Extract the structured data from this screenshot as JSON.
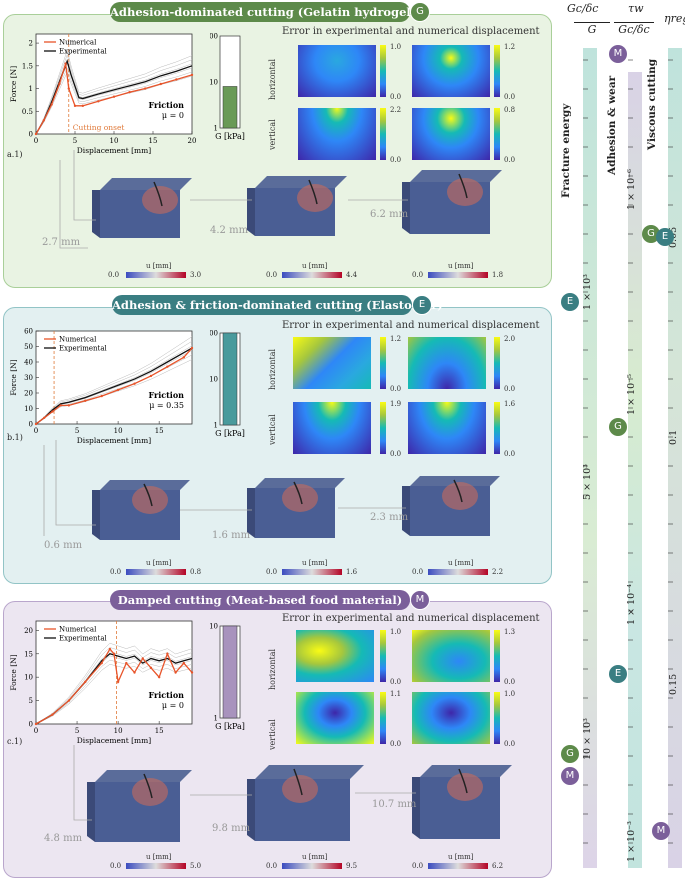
{
  "colors": {
    "green": "#5d8a4a",
    "teal": "#3a7e82",
    "purple": "#7b5f9a",
    "numerical": "#e8542a",
    "experimental": "#111111",
    "onset": "#e07a3a",
    "grey": "#999999"
  },
  "panels": [
    {
      "id": "a",
      "title": "Adhesion-dominated cutting (Gelatin hydrogel)",
      "badge": "G",
      "label": "a.1)",
      "plot": {
        "ylabel": "Force [N]",
        "xlabel": "Displacement [mm]",
        "yticks": [
          "0",
          "0.5",
          "1",
          "1.5",
          "2"
        ],
        "xticks": [
          "0",
          "5",
          "10",
          "15",
          "20"
        ],
        "legend": [
          "Numerical",
          "Experimental"
        ],
        "friction_title": "Friction",
        "friction": "μ = 0",
        "onset": "Cutting onset"
      },
      "gbar": {
        "ticks": [
          "1",
          "10",
          "100"
        ],
        "label": "G [kPa]",
        "value": 8
      },
      "error_title": "Error in experimental and numerical displacement",
      "rows": [
        "horizontal",
        "vertical"
      ],
      "cbars": [
        [
          "1.0",
          "0.0"
        ],
        [
          "1.2",
          "0.0"
        ],
        [
          "2.2",
          "0.0"
        ],
        [
          "0.8",
          "0.0"
        ]
      ],
      "disp": [
        "2.7 mm",
        "4.2 mm",
        "6.2 mm"
      ],
      "blocks": [
        {
          "unit": "u [mm]",
          "min": "0.0",
          "max": "3.0"
        },
        {
          "unit": "u [mm]",
          "min": "0.0",
          "max": "4.4"
        },
        {
          "unit": "u [mm]",
          "min": "0.0",
          "max": "1.8"
        }
      ]
    },
    {
      "id": "b",
      "title": "Adhesion & friction-dominated cutting (Elastomer)",
      "badge": "E",
      "label": "b.1)",
      "plot": {
        "ylabel": "Force [N]",
        "xlabel": "Displacement [mm]",
        "yticks": [
          "0",
          "10",
          "20",
          "30",
          "40",
          "50",
          "60"
        ],
        "xticks": [
          "0",
          "5",
          "10",
          "15"
        ],
        "legend": [
          "Numerical",
          "Experimental"
        ],
        "friction_title": "Friction",
        "friction": "μ = 0.35"
      },
      "gbar": {
        "ticks": [
          "1",
          "10",
          "100"
        ],
        "label": "G [kPa]",
        "value": 120
      },
      "error_title": "Error in experimental and numerical displacement",
      "rows": [
        "horizontal",
        "vertical"
      ],
      "cbars": [
        [
          "1.2",
          "0.0"
        ],
        [
          "2.0",
          "0.0"
        ],
        [
          "1.9",
          "0.0"
        ],
        [
          "1.6",
          "0.0"
        ]
      ],
      "disp": [
        "0.6 mm",
        "1.6 mm",
        "2.3 mm"
      ],
      "blocks": [
        {
          "unit": "u [mm]",
          "min": "0.0",
          "max": "0.8"
        },
        {
          "unit": "u [mm]",
          "min": "0.0",
          "max": "1.6"
        },
        {
          "unit": "u [mm]",
          "min": "0.0",
          "max": "2.2"
        }
      ]
    },
    {
      "id": "c",
      "title": "Damped cutting (Meat-based food material)",
      "badge": "M",
      "label": "c.1)",
      "plot": {
        "ylabel": "Force [N]",
        "xlabel": "Displacement [mm]",
        "yticks": [
          "0",
          "5",
          "10",
          "15",
          "20"
        ],
        "xticks": [
          "0",
          "5",
          "10",
          "15"
        ],
        "legend": [
          "Numerical",
          "Experimental"
        ],
        "friction_title": "Friction",
        "friction": "μ = 0"
      },
      "gbar": {
        "ticks": [
          "1",
          "10"
        ],
        "label": "G [kPa]",
        "value": 25
      },
      "error_title": "Error in experimental and numerical displacement",
      "rows": [
        "horizontal",
        "vertical"
      ],
      "cbars": [
        [
          "1.0",
          "0.0"
        ],
        [
          "1.3",
          "0.0"
        ],
        [
          "1.1",
          "0.0"
        ],
        [
          "1.0",
          "0.0"
        ]
      ],
      "disp": [
        "4.8 mm",
        "9.8 mm",
        "10.7 mm"
      ],
      "blocks": [
        {
          "unit": "u [mm]",
          "min": "0.0",
          "max": "5.0"
        },
        {
          "unit": "u [mm]",
          "min": "0.0",
          "max": "9.5"
        },
        {
          "unit": "u [mm]",
          "min": "0.0",
          "max": "6.2"
        }
      ]
    }
  ],
  "right": {
    "col1": {
      "header_num": "Gc/δc",
      "header_den": "G",
      "label": "Fracture energy",
      "ticks": [
        "1 × 10³",
        "5 × 10³",
        "10 × 10³"
      ]
    },
    "col2": {
      "header_num": "τw",
      "header_den": "Gc/δc",
      "label": "Adhesion & wear",
      "ticks": [
        "1 × 10⁻⁶",
        "1 × 10⁻⁵",
        "1 × 10⁻⁴",
        "1 × 10⁻³"
      ]
    },
    "col3": {
      "header": "ηreg",
      "label": "Viscous cutting",
      "ticks": [
        "0.05",
        "0.1",
        "0.15"
      ]
    },
    "markers": {
      "E": "E",
      "G": "G",
      "M": "M"
    }
  },
  "chart_data": [
    {
      "type": "line",
      "title": "",
      "xlabel": "Displacement [mm]",
      "ylabel": "Force [N]",
      "xlim": [
        0,
        20
      ],
      "ylim": [
        0,
        2.2
      ],
      "series": [
        {
          "name": "Numerical",
          "x": [
            0,
            1,
            2,
            3,
            3.8,
            4.2,
            5,
            6,
            8,
            10,
            12,
            14,
            16,
            18,
            20
          ],
          "y": [
            0,
            0.3,
            0.65,
            1.1,
            1.55,
            1.0,
            0.62,
            0.62,
            0.72,
            0.82,
            0.92,
            1.0,
            1.1,
            1.2,
            1.3
          ]
        },
        {
          "name": "Experimental",
          "x": [
            0,
            1,
            2,
            3,
            4,
            4.5,
            5.5,
            6,
            8,
            10,
            12,
            14,
            16,
            18,
            20
          ],
          "y": [
            0,
            0.3,
            0.7,
            1.15,
            1.6,
            1.3,
            0.8,
            0.78,
            0.88,
            0.97,
            1.06,
            1.15,
            1.28,
            1.38,
            1.5
          ]
        }
      ]
    },
    {
      "type": "line",
      "title": "",
      "xlabel": "Displacement [mm]",
      "ylabel": "Force [N]",
      "xlim": [
        0,
        19
      ],
      "ylim": [
        0,
        60
      ],
      "series": [
        {
          "name": "Numerical",
          "x": [
            0,
            1,
            2,
            3,
            4,
            6,
            8,
            10,
            12,
            14,
            16,
            18,
            19
          ],
          "y": [
            0,
            4,
            8,
            12,
            12,
            15,
            18,
            22,
            26,
            31,
            37,
            43,
            49
          ]
        },
        {
          "name": "Experimental",
          "x": [
            0,
            1,
            2,
            3,
            4,
            6,
            8,
            10,
            12,
            14,
            16,
            18,
            19
          ],
          "y": [
            0,
            4,
            9,
            13,
            14,
            17,
            21,
            25,
            29,
            34,
            40,
            46,
            49
          ]
        }
      ]
    },
    {
      "type": "line",
      "title": "",
      "xlabel": "Displacement [mm]",
      "ylabel": "Force [N]",
      "xlim": [
        0,
        19
      ],
      "ylim": [
        0,
        22
      ],
      "series": [
        {
          "name": "Numerical",
          "x": [
            0,
            2,
            4,
            6,
            8,
            9,
            9.5,
            10,
            11,
            12,
            13,
            14,
            15,
            16,
            17,
            18,
            19
          ],
          "y": [
            0,
            2,
            5,
            9,
            13,
            16,
            15,
            9,
            13,
            11,
            14,
            12,
            10,
            15,
            11,
            13,
            11
          ]
        },
        {
          "name": "Experimental",
          "x": [
            0,
            2,
            4,
            6,
            8,
            9,
            10,
            11,
            12,
            13,
            14,
            15,
            16,
            17,
            18,
            19
          ],
          "y": [
            0,
            2,
            5,
            9,
            13.5,
            15,
            14.5,
            14,
            14.5,
            13,
            14,
            13.5,
            14,
            13,
            13.5,
            14
          ]
        }
      ]
    }
  ]
}
